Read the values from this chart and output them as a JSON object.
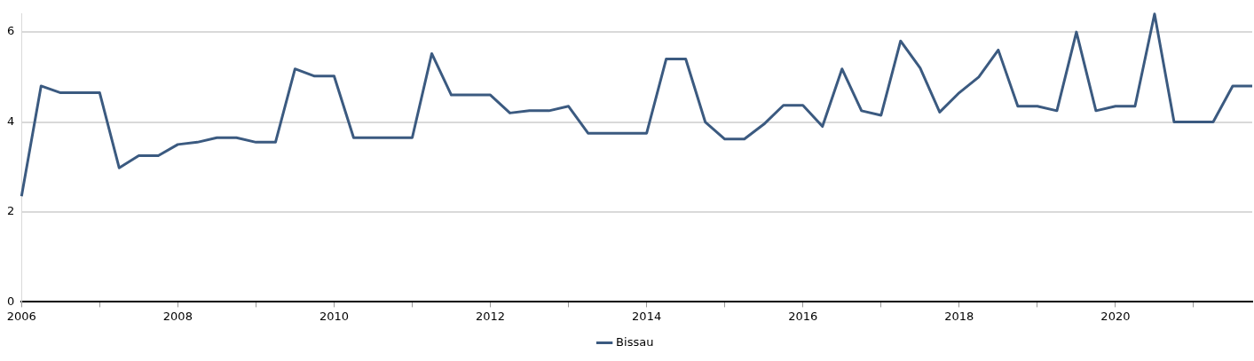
{
  "chart_data": {
    "type": "line",
    "x": [
      2006,
      2006.25,
      2006.5,
      2006.75,
      2007,
      2007.25,
      2007.5,
      2007.75,
      2008,
      2008.25,
      2008.5,
      2008.75,
      2009,
      2009.25,
      2009.5,
      2009.75,
      2010,
      2010.25,
      2010.5,
      2010.75,
      2011,
      2011.25,
      2011.5,
      2011.75,
      2012,
      2012.25,
      2012.5,
      2012.75,
      2013,
      2013.25,
      2013.5,
      2013.75,
      2014,
      2014.25,
      2014.5,
      2014.75,
      2015,
      2015.25,
      2015.5,
      2015.75,
      2016,
      2016.25,
      2016.5,
      2016.75,
      2017,
      2017.25,
      2017.5,
      2017.75,
      2018,
      2018.25,
      2018.5,
      2018.75,
      2019,
      2019.25,
      2019.5,
      2019.75,
      2020,
      2020.25,
      2020.5,
      2020.75,
      2021,
      2021.25,
      2021.5,
      2021.75
    ],
    "series": [
      {
        "name": "Bissau",
        "color": "#3b5a80",
        "values": [
          2.35,
          4.8,
          4.65,
          4.65,
          4.65,
          2.98,
          3.25,
          3.25,
          3.5,
          3.55,
          3.65,
          3.65,
          3.55,
          3.55,
          5.18,
          5.02,
          5.02,
          3.65,
          3.65,
          3.65,
          3.65,
          5.52,
          4.6,
          4.6,
          4.6,
          4.2,
          4.25,
          4.25,
          4.35,
          3.75,
          3.75,
          3.75,
          3.75,
          5.4,
          5.4,
          4.0,
          3.62,
          3.62,
          3.95,
          4.37,
          4.37,
          3.9,
          5.18,
          4.25,
          4.15,
          5.8,
          5.2,
          4.22,
          4.65,
          5.0,
          5.6,
          4.35,
          4.35,
          4.25,
          6.0,
          4.25,
          4.35,
          4.35,
          6.4,
          4.0,
          4.0,
          4.0,
          4.8,
          4.8
        ]
      }
    ],
    "xlim": [
      2006,
      2021.75
    ],
    "xticks": [
      2006,
      {
        "value": 2007,
        "label": null
      },
      2008,
      {
        "value": 2009,
        "label": null
      },
      2010,
      {
        "value": 2011,
        "label": null
      },
      2012,
      {
        "value": 2013,
        "label": null
      },
      2014,
      {
        "value": 2015,
        "label": null
      },
      2016,
      {
        "value": 2017,
        "label": null
      },
      2018,
      {
        "value": 2019,
        "label": null
      },
      2020,
      {
        "value": 2021,
        "label": null
      }
    ],
    "ylim": [
      0,
      6.4
    ],
    "yticks": [
      0,
      2,
      4,
      6
    ],
    "grid": "y",
    "legend": "bottom"
  }
}
